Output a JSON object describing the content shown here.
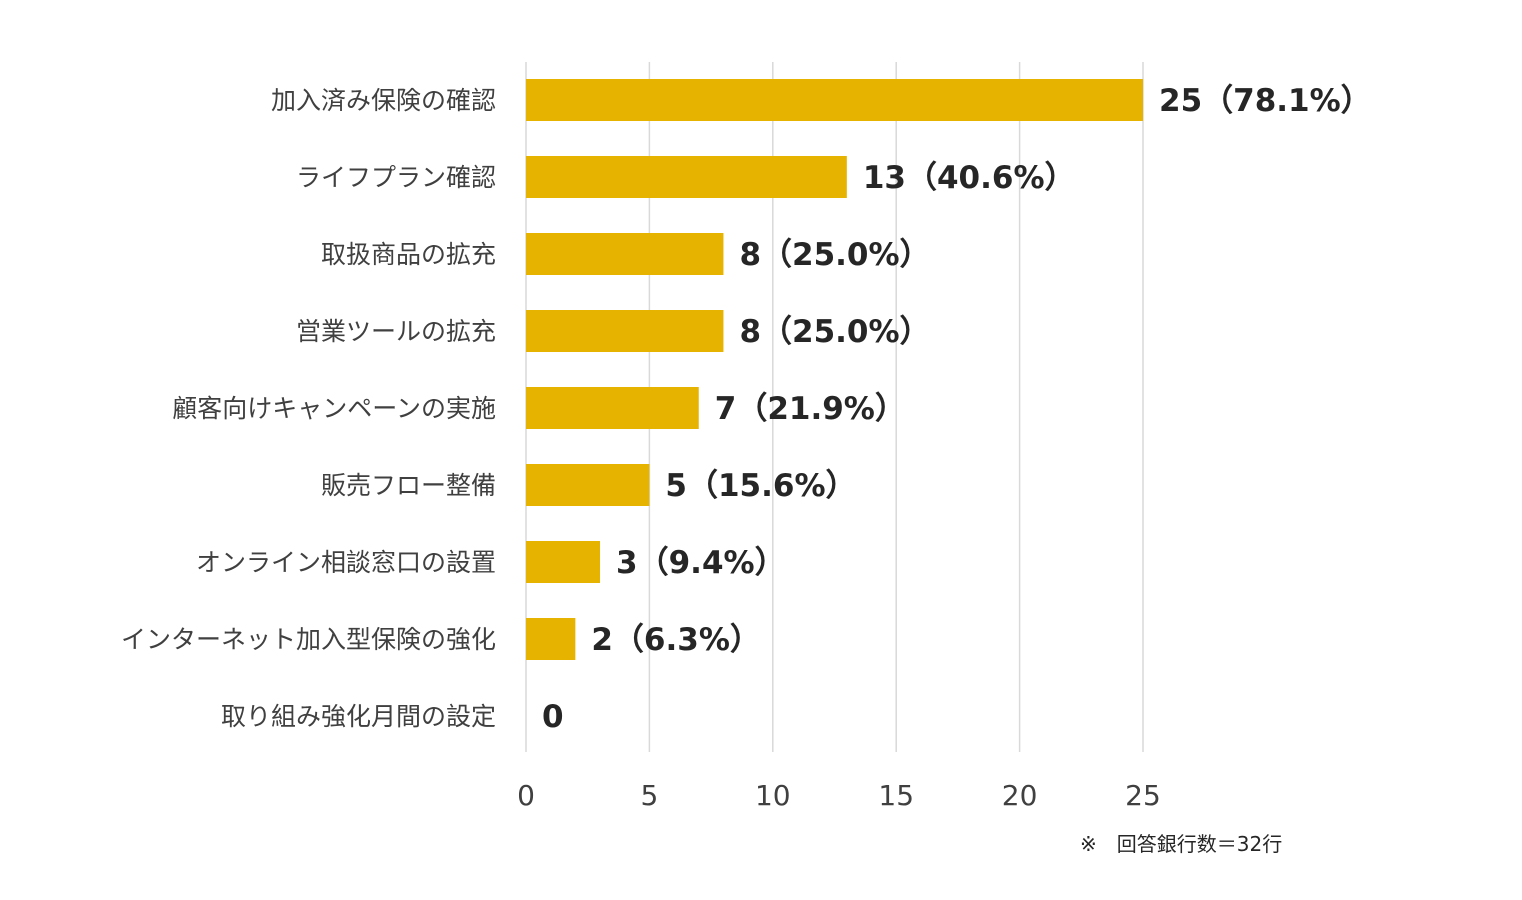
{
  "chart_data": {
    "type": "bar",
    "orientation": "horizontal",
    "categories": [
      "加入済み保険の確認",
      "ライフプラン確認",
      "取扱商品の拡充",
      "営業ツールの拡充",
      "顧客向けキャンペーンの実施",
      "販売フロー整備",
      "オンライン相談窓口の設置",
      "インターネット加入型保険の強化",
      "取り組み強化月間の設定"
    ],
    "values": [
      25,
      13,
      8,
      8,
      7,
      5,
      3,
      2,
      0
    ],
    "data_labels": [
      "25（78.1%）",
      "13（40.6%）",
      "8（25.0%）",
      "8（25.0%）",
      "7（21.9%）",
      "5（15.6%）",
      "3（9.4%）",
      "2（6.3%）",
      "0"
    ],
    "xlim": [
      0,
      25
    ],
    "xticks": [
      "0",
      "5",
      "10",
      "15",
      "20",
      "25"
    ],
    "grid": true,
    "bar_color": "#E6B400",
    "title": "",
    "xlabel": "",
    "ylabel": ""
  },
  "note": "※　回答銀行数＝32行"
}
